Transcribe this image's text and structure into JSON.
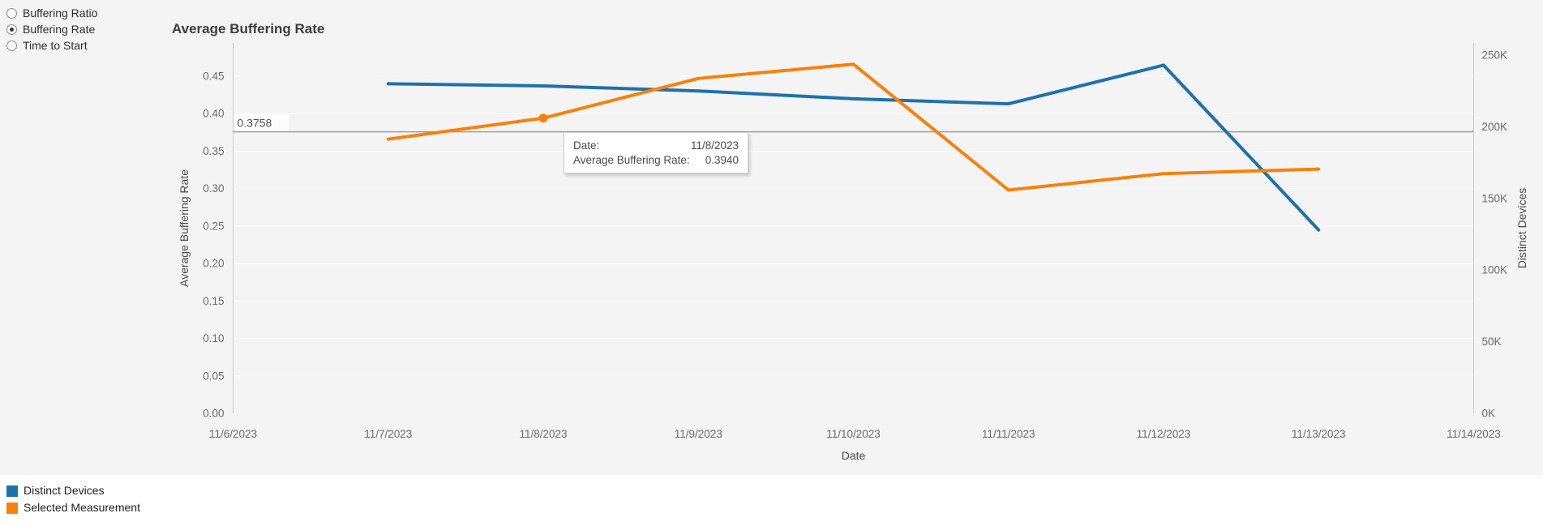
{
  "controls": {
    "options": [
      {
        "label": "Buffering Ratio",
        "selected": false
      },
      {
        "label": "Buffering Rate",
        "selected": true
      },
      {
        "label": "Time to Start",
        "selected": false
      }
    ]
  },
  "chart_data": {
    "type": "line",
    "title": "Average Buffering Rate",
    "xlabel": "Date",
    "x_categories": [
      "11/6/2023",
      "11/7/2023",
      "11/8/2023",
      "11/9/2023",
      "11/10/2023",
      "11/11/2023",
      "11/12/2023",
      "11/13/2023",
      "11/14/2023"
    ],
    "left_axis": {
      "title": "Average Buffering Rate",
      "min": 0,
      "max": 0.45,
      "ticks": [
        "0.00",
        "0.05",
        "0.10",
        "0.15",
        "0.20",
        "0.25",
        "0.30",
        "0.35",
        "0.40",
        "0.45"
      ],
      "tick_values": [
        0,
        0.05,
        0.1,
        0.15,
        0.2,
        0.25,
        0.3,
        0.35,
        0.4,
        0.45
      ]
    },
    "right_axis": {
      "title": "Distinct Devices",
      "min": 0,
      "max": 250000,
      "ticks": [
        "0K",
        "50K",
        "100K",
        "150K",
        "200K",
        "250K"
      ],
      "tick_values": [
        0,
        50000,
        100000,
        150000,
        200000,
        250000
      ]
    },
    "reference_line": {
      "value": 0.3758,
      "label": "0.3758",
      "axis": "left"
    },
    "series": [
      {
        "name": "Distinct Devices",
        "axis": "right",
        "color": "#1c72ad",
        "dates": [
          "11/7/2023",
          "11/8/2023",
          "11/9/2023",
          "11/10/2023",
          "11/11/2023",
          "11/12/2023",
          "11/13/2023"
        ],
        "values": [
          230000,
          228500,
          225000,
          219500,
          216000,
          243000,
          128000
        ]
      },
      {
        "name": "Selected Measurement",
        "axis": "left",
        "color": "#f8810b",
        "dates": [
          "11/7/2023",
          "11/8/2023",
          "11/9/2023",
          "11/10/2023",
          "11/11/2023",
          "11/12/2023",
          "11/13/2023"
        ],
        "values": [
          0.366,
          0.394,
          0.447,
          0.466,
          0.298,
          0.32,
          0.326
        ]
      }
    ],
    "highlight_point": {
      "series": "Selected Measurement",
      "date": "11/8/2023",
      "value": 0.394
    },
    "grid": true,
    "legend_position": "bottom-left"
  },
  "tooltip": {
    "rows": [
      {
        "label": "Date:",
        "value": "11/8/2023"
      },
      {
        "label": "Average Buffering Rate:",
        "value": "0.3940"
      }
    ]
  },
  "legend": {
    "items": [
      {
        "label": "Distinct Devices",
        "color": "#1c72ad"
      },
      {
        "label": "Selected Measurement",
        "color": "#f8810b"
      }
    ]
  }
}
